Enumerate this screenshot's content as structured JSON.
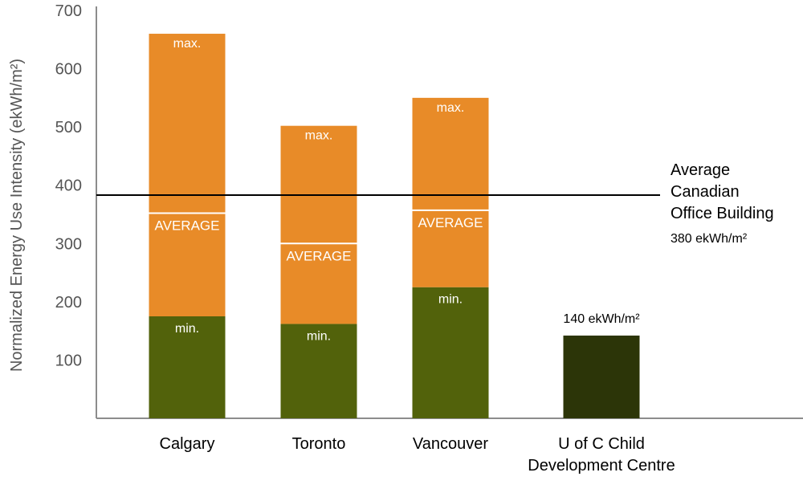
{
  "chart_data": {
    "type": "bar",
    "ylabel": "Normalized Energy Use Intensity (ekWh/m²)",
    "ylim": [
      0,
      700
    ],
    "yticks": [
      100,
      200,
      300,
      400,
      500,
      600,
      700
    ],
    "grid": false,
    "categories": [
      "Calgary",
      "Toronto",
      "Vancouver",
      "U of C Child\nDevelopment Centre"
    ],
    "series": [
      {
        "type": "range",
        "min": [
          175,
          162,
          225,
          null
        ],
        "max": [
          660,
          502,
          550,
          null
        ],
        "average": [
          352,
          300,
          357,
          null
        ],
        "min_label": "min.",
        "max_label": "max.",
        "average_label": "AVERAGE"
      },
      {
        "type": "single",
        "values": [
          null,
          null,
          null,
          142
        ],
        "value_label": "140 ekWh/m²"
      }
    ],
    "reference_line": {
      "value": 383,
      "label_lines": [
        "Average",
        "Canadian",
        "Office Building"
      ],
      "sublabel": "380 ekWh/m²"
    },
    "colors": {
      "min": "#52620b",
      "range": "#e88b28",
      "single": "#2c3508",
      "axis": "#8c8c8c",
      "reference": "#000000",
      "in_bar_text": "#ffffff",
      "text": "#000000",
      "axis_text": "#555555"
    }
  }
}
